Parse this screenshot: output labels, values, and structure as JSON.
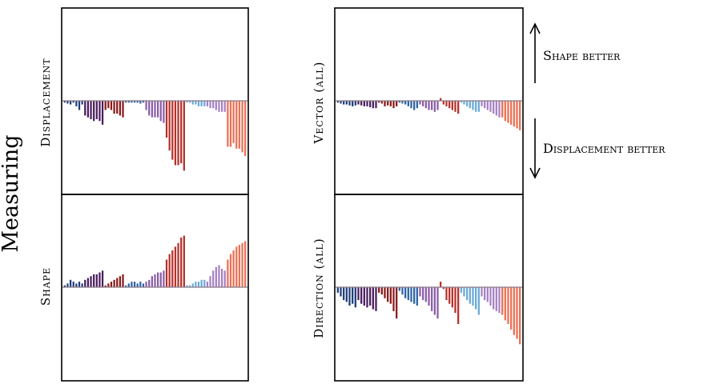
{
  "figure": {
    "row_label": "Measuring",
    "annotations": {
      "up_text": "Shape better",
      "down_text": "Displacement better"
    }
  },
  "chart_data": [
    {
      "type": "bar",
      "panel": "left-top",
      "ylabel": "Displacement",
      "baseline": 0,
      "ylim": [
        -1,
        1
      ],
      "series": [
        {
          "color": "#1f3f7a",
          "values": [
            -0.02,
            -0.03,
            -0.04,
            -0.02,
            -0.06,
            -0.1,
            -0.04
          ]
        },
        {
          "color": "#4a1e5e",
          "values": [
            -0.16,
            -0.18,
            -0.2,
            -0.22,
            -0.2,
            -0.22,
            -0.26
          ]
        },
        {
          "color": "#8b1a1a",
          "values": [
            -0.1,
            -0.08,
            -0.1,
            -0.14,
            -0.14,
            -0.16,
            -0.18
          ]
        },
        {
          "color": "#2d63a3",
          "values": [
            -0.02,
            -0.02,
            -0.02,
            -0.02,
            -0.02,
            -0.03,
            -0.02
          ]
        },
        {
          "color": "#8a5ea8",
          "values": [
            -0.1,
            -0.16,
            -0.18,
            -0.18,
            -0.18,
            -0.22,
            -0.24
          ]
        },
        {
          "color": "#b8302a",
          "values": [
            -0.4,
            -0.54,
            -0.64,
            -0.7,
            -0.7,
            -0.68,
            -0.76
          ]
        },
        {
          "color": "#6aaad6",
          "values": [
            -0.02,
            -0.02,
            -0.04,
            -0.04,
            -0.06,
            -0.06,
            -0.06
          ]
        },
        {
          "color": "#a681c4",
          "values": [
            -0.06,
            -0.08,
            -0.08,
            -0.1,
            -0.12,
            -0.12,
            -0.12
          ]
        },
        {
          "color": "#ec7054",
          "values": [
            -0.5,
            -0.5,
            -0.46,
            -0.52,
            -0.52,
            -0.56,
            -0.6
          ]
        }
      ]
    },
    {
      "type": "bar",
      "panel": "left-bottom",
      "ylabel": "Shape",
      "baseline": 0,
      "ylim": [
        -1,
        1
      ],
      "series": [
        {
          "color": "#1f3f7a",
          "values": [
            0.02,
            0.04,
            0.08,
            0.06,
            0.04,
            0.06,
            0.04
          ]
        },
        {
          "color": "#4a1e5e",
          "values": [
            0.08,
            0.1,
            0.12,
            0.14,
            0.14,
            0.16,
            0.18
          ]
        },
        {
          "color": "#8b1a1a",
          "values": [
            0.02,
            0.04,
            0.06,
            0.08,
            0.1,
            0.12,
            0.14
          ]
        },
        {
          "color": "#2d63a3",
          "values": [
            0.02,
            0.04,
            0.06,
            0.06,
            0.04,
            0.06,
            0.04
          ]
        },
        {
          "color": "#8a5ea8",
          "values": [
            0.06,
            0.08,
            0.12,
            0.14,
            0.16,
            0.16,
            0.18
          ]
        },
        {
          "color": "#b8302a",
          "values": [
            0.3,
            0.36,
            0.4,
            0.44,
            0.48,
            0.54,
            0.56
          ]
        },
        {
          "color": "#6aaad6",
          "values": [
            0.02,
            0.02,
            0.04,
            0.06,
            0.06,
            0.08,
            0.08
          ]
        },
        {
          "color": "#a681c4",
          "values": [
            0.06,
            0.12,
            0.18,
            0.22,
            0.24,
            0.2,
            0.18
          ]
        },
        {
          "color": "#ec7054",
          "values": [
            0.3,
            0.36,
            0.4,
            0.44,
            0.46,
            0.48,
            0.5
          ]
        }
      ]
    },
    {
      "type": "bar",
      "panel": "right-top",
      "ylabel": "Vector (all)",
      "baseline": 0,
      "ylim": [
        -1,
        1
      ],
      "series": [
        {
          "color": "#1f3f7a",
          "values": [
            -0.02,
            -0.03,
            -0.04,
            -0.04,
            -0.05,
            -0.06,
            -0.05
          ]
        },
        {
          "color": "#4a1e5e",
          "values": [
            -0.04,
            -0.05,
            -0.06,
            -0.06,
            -0.07,
            -0.08,
            -0.08
          ]
        },
        {
          "color": "#8b1a1a",
          "values": [
            -0.02,
            -0.03,
            -0.06,
            -0.05,
            -0.06,
            -0.08,
            -0.06
          ]
        },
        {
          "color": "#2d63a3",
          "values": [
            -0.02,
            -0.03,
            -0.04,
            -0.06,
            -0.08,
            -0.1,
            -0.08
          ]
        },
        {
          "color": "#8a5ea8",
          "values": [
            -0.04,
            -0.06,
            -0.08,
            -0.1,
            -0.1,
            -0.12,
            -0.1
          ]
        },
        {
          "color": "#b8302a",
          "values": [
            0.03,
            -0.04,
            -0.06,
            -0.08,
            -0.1,
            -0.12,
            -0.14
          ]
        },
        {
          "color": "#6aaad6",
          "values": [
            -0.02,
            -0.04,
            -0.06,
            -0.08,
            -0.1,
            -0.12,
            -0.12
          ]
        },
        {
          "color": "#a681c4",
          "values": [
            -0.06,
            -0.08,
            -0.1,
            -0.12,
            -0.14,
            -0.16,
            -0.18
          ]
        },
        {
          "color": "#ec7054",
          "values": [
            -0.18,
            -0.22,
            -0.24,
            -0.26,
            -0.28,
            -0.3,
            -0.32
          ]
        }
      ]
    },
    {
      "type": "bar",
      "panel": "right-bottom",
      "ylabel": "Direction (all)",
      "baseline": 0,
      "ylim": [
        -1,
        1
      ],
      "series": [
        {
          "color": "#1f3f7a",
          "values": [
            -0.06,
            -0.1,
            -0.14,
            -0.16,
            -0.2,
            -0.18,
            -0.22
          ]
        },
        {
          "color": "#4a1e5e",
          "values": [
            -0.14,
            -0.18,
            -0.2,
            -0.22,
            -0.2,
            -0.24,
            -0.26
          ]
        },
        {
          "color": "#8b1a1a",
          "values": [
            -0.06,
            -0.08,
            -0.12,
            -0.16,
            -0.18,
            -0.26,
            -0.34
          ]
        },
        {
          "color": "#2d63a3",
          "values": [
            -0.04,
            -0.08,
            -0.12,
            -0.14,
            -0.16,
            -0.18,
            -0.2
          ]
        },
        {
          "color": "#8a5ea8",
          "values": [
            -0.1,
            -0.14,
            -0.16,
            -0.2,
            -0.26,
            -0.3,
            -0.34
          ]
        },
        {
          "color": "#b8302a",
          "values": [
            0.06,
            -0.02,
            -0.14,
            -0.18,
            -0.22,
            -0.28,
            -0.4
          ]
        },
        {
          "color": "#6aaad6",
          "values": [
            -0.06,
            -0.1,
            -0.14,
            -0.18,
            -0.2,
            -0.24,
            -0.3
          ]
        },
        {
          "color": "#a681c4",
          "values": [
            -0.1,
            -0.14,
            -0.16,
            -0.2,
            -0.24,
            -0.26,
            -0.28
          ]
        },
        {
          "color": "#ec7054",
          "values": [
            -0.3,
            -0.36,
            -0.4,
            -0.46,
            -0.52,
            -0.56,
            -0.62
          ]
        }
      ]
    }
  ]
}
